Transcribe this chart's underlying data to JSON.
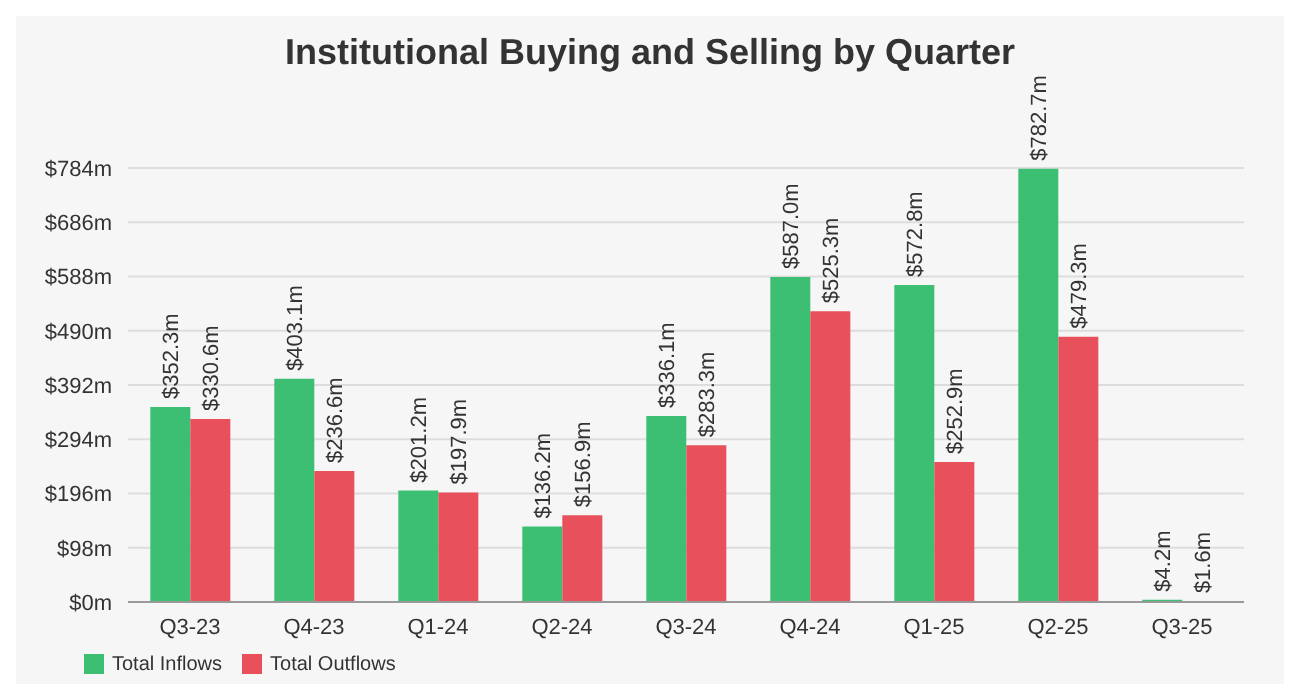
{
  "chart_data": {
    "type": "bar",
    "title": "Institutional Buying and Selling by Quarter",
    "categories": [
      "Q3-23",
      "Q4-23",
      "Q1-24",
      "Q2-24",
      "Q3-24",
      "Q4-24",
      "Q1-25",
      "Q2-25",
      "Q3-25"
    ],
    "series": [
      {
        "name": "Total Inflows",
        "color": "#3dbf73",
        "values": [
          352.3,
          403.1,
          201.2,
          136.2,
          336.1,
          587.0,
          572.8,
          782.7,
          4.2
        ],
        "value_labels": [
          "$352.3m",
          "$403.1m",
          "$201.2m",
          "$136.2m",
          "$336.1m",
          "$587.0m",
          "$572.8m",
          "$782.7m",
          "$4.2m"
        ]
      },
      {
        "name": "Total Outflows",
        "color": "#e8505b",
        "values": [
          330.6,
          236.6,
          197.9,
          156.9,
          283.3,
          525.3,
          252.9,
          479.3,
          1.6
        ],
        "value_labels": [
          "$330.6m",
          "$236.6m",
          "$197.9m",
          "$156.9m",
          "$283.3m",
          "$525.3m",
          "$252.9m",
          "$479.3m",
          "$1.6m"
        ]
      }
    ],
    "ylim": [
      0,
      784
    ],
    "yticks": [
      {
        "value": 0,
        "label": "$0m"
      },
      {
        "value": 98,
        "label": "$98m"
      },
      {
        "value": 196,
        "label": "$196m"
      },
      {
        "value": 294,
        "label": "$294m"
      },
      {
        "value": 392,
        "label": "$392m"
      },
      {
        "value": 490,
        "label": "$490m"
      },
      {
        "value": 588,
        "label": "$588m"
      },
      {
        "value": 686,
        "label": "$686m"
      },
      {
        "value": 784,
        "label": "$784m"
      }
    ],
    "grid": "y",
    "legend": "bottom left"
  }
}
